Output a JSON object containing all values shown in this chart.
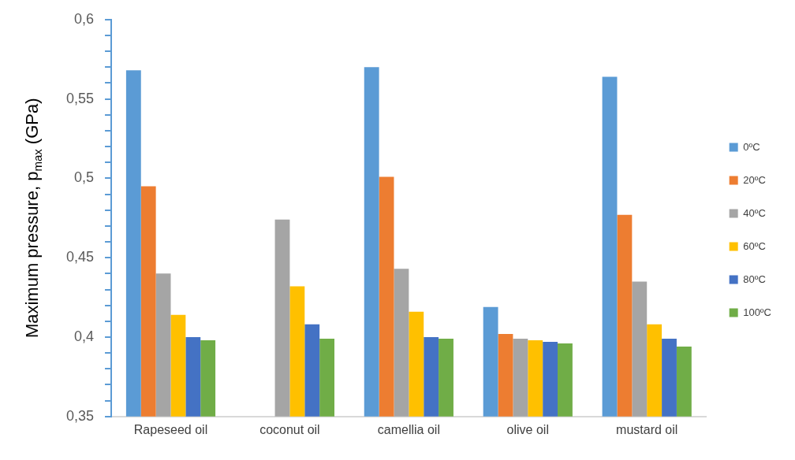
{
  "chart_data": {
    "type": "bar",
    "ylabel": "Maximum pressure, p$_{max}$ (GPa)",
    "categories": [
      "Rapeseed oil",
      "coconut oil",
      "camellia oil",
      "olive oil",
      "mustard oil"
    ],
    "series": [
      {
        "name": "0ºC",
        "color": "#5b9bd5",
        "values": [
          0.568,
          null,
          0.57,
          0.419,
          0.564
        ]
      },
      {
        "name": "20ºC",
        "color": "#ed7d31",
        "values": [
          0.495,
          null,
          0.501,
          0.402,
          0.477
        ]
      },
      {
        "name": "40ºC",
        "color": "#a5a5a5",
        "values": [
          0.44,
          0.474,
          0.443,
          0.399,
          0.435
        ]
      },
      {
        "name": "60ºC",
        "color": "#ffc000",
        "values": [
          0.414,
          0.432,
          0.416,
          0.398,
          0.408
        ]
      },
      {
        "name": "80ºC",
        "color": "#4472c4",
        "values": [
          0.4,
          0.408,
          0.4,
          0.397,
          0.399
        ]
      },
      {
        "name": "100ºC",
        "color": "#70ad47",
        "values": [
          0.398,
          0.399,
          0.399,
          0.396,
          0.394
        ]
      }
    ],
    "ylim": [
      0.35,
      0.6
    ],
    "yticks": [
      {
        "value": 0.35,
        "label": "0,35"
      },
      {
        "value": 0.36,
        "label": null
      },
      {
        "value": 0.37,
        "label": null
      },
      {
        "value": 0.38,
        "label": null
      },
      {
        "value": 0.39,
        "label": null
      },
      {
        "value": 0.4,
        "label": "0,4"
      },
      {
        "value": 0.41,
        "label": null
      },
      {
        "value": 0.42,
        "label": null
      },
      {
        "value": 0.43,
        "label": null
      },
      {
        "value": 0.44,
        "label": null
      },
      {
        "value": 0.45,
        "label": "0,45"
      },
      {
        "value": 0.46,
        "label": null
      },
      {
        "value": 0.47,
        "label": null
      },
      {
        "value": 0.48,
        "label": null
      },
      {
        "value": 0.49,
        "label": null
      },
      {
        "value": 0.5,
        "label": "0,5"
      },
      {
        "value": 0.51,
        "label": null
      },
      {
        "value": 0.52,
        "label": null
      },
      {
        "value": 0.53,
        "label": null
      },
      {
        "value": 0.54,
        "label": null
      },
      {
        "value": 0.55,
        "label": "0,55"
      },
      {
        "value": 0.56,
        "label": null
      },
      {
        "value": 0.57,
        "label": null
      },
      {
        "value": 0.58,
        "label": null
      },
      {
        "value": 0.59,
        "label": null
      },
      {
        "value": 0.6,
        "label": "0,6"
      }
    ],
    "grid": false,
    "legend": "right"
  }
}
